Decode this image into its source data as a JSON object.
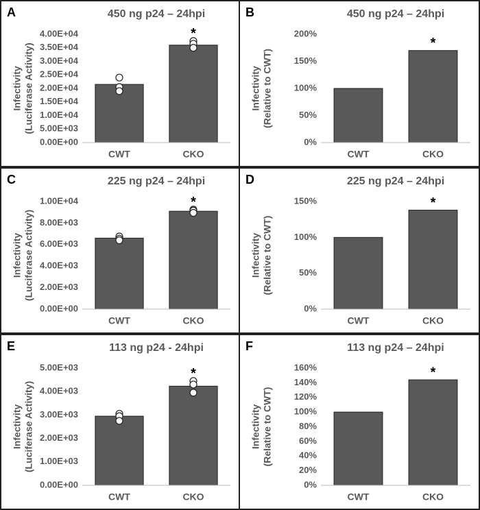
{
  "chart_data": [
    {
      "type": "bar",
      "panel": "A",
      "title": "450 ng p24 – 24hpi",
      "ylabel": [
        "Infectivity",
        "(Luciferase Activity)"
      ],
      "categories": [
        "CWT",
        "CKO"
      ],
      "values": [
        21500,
        36000
      ],
      "color": "#595959",
      "points": [
        [
          24000,
          20500,
          19000
        ],
        [
          37500,
          36500,
          35000
        ]
      ],
      "value_annotations": [
        null,
        "*"
      ],
      "ylim": [
        0,
        40000
      ],
      "yticks": [
        {
          "value": 0,
          "label": "0.00E+00"
        },
        {
          "value": 5000,
          "label": "5.00E+03"
        },
        {
          "value": 10000,
          "label": "1.00E+04"
        },
        {
          "value": 15000,
          "label": "1.50E+04"
        },
        {
          "value": 20000,
          "label": "2.00E+04"
        },
        {
          "value": 25000,
          "label": "2.50E+04"
        },
        {
          "value": 30000,
          "label": "3.00E+04"
        },
        {
          "value": 35000,
          "label": "3.50E+04"
        },
        {
          "value": 40000,
          "label": "4.00E+04"
        }
      ]
    },
    {
      "type": "bar",
      "panel": "B",
      "title": "450 ng p24 – 24hpi",
      "ylabel": [
        "Infectivity",
        "(Relative to CWT)"
      ],
      "categories": [
        "CWT",
        "CKO"
      ],
      "values": [
        100,
        170
      ],
      "color": "#595959",
      "value_annotations": [
        null,
        "*"
      ],
      "ylim": [
        0,
        200
      ],
      "yticks": [
        {
          "value": 0,
          "label": "0%"
        },
        {
          "value": 50,
          "label": "50%"
        },
        {
          "value": 100,
          "label": "100%"
        },
        {
          "value": 150,
          "label": "150%"
        },
        {
          "value": 200,
          "label": "200%"
        }
      ]
    },
    {
      "type": "bar",
      "panel": "C",
      "title": "225 ng p24 – 24hpi",
      "ylabel": [
        "Infectivity",
        "(Luciferase Activity)"
      ],
      "categories": [
        "CWT",
        "CKO"
      ],
      "values": [
        6600,
        9100
      ],
      "color": "#595959",
      "points": [
        [
          6750,
          6550,
          6400
        ],
        [
          9250,
          9150,
          8950
        ]
      ],
      "value_annotations": [
        null,
        "*"
      ],
      "ylim": [
        0,
        10000
      ],
      "yticks": [
        {
          "value": 0,
          "label": "0.00E+00"
        },
        {
          "value": 2000,
          "label": "2.00E+03"
        },
        {
          "value": 4000,
          "label": "4.00E+03"
        },
        {
          "value": 6000,
          "label": "6.00E+03"
        },
        {
          "value": 8000,
          "label": "8.00E+03"
        },
        {
          "value": 10000,
          "label": "1.00E+04"
        }
      ]
    },
    {
      "type": "bar",
      "panel": "D",
      "title": "225 ng p24 – 24hpi",
      "ylabel": [
        "Infectivity",
        "(Relative to CWT)"
      ],
      "categories": [
        "CWT",
        "CKO"
      ],
      "values": [
        100,
        138
      ],
      "color": "#595959",
      "value_annotations": [
        null,
        "*"
      ],
      "ylim": [
        0,
        150
      ],
      "yticks": [
        {
          "value": 0,
          "label": "0%"
        },
        {
          "value": 50,
          "label": "50%"
        },
        {
          "value": 100,
          "label": "100%"
        },
        {
          "value": 150,
          "label": "150%"
        }
      ]
    },
    {
      "type": "bar",
      "panel": "E",
      "title": "113 ng p24 - 24hpi",
      "ylabel": [
        "Infectivity",
        "(Luciferase Activity)"
      ],
      "categories": [
        "CWT",
        "CKO"
      ],
      "values": [
        2950,
        4230
      ],
      "color": "#595959",
      "points": [
        [
          3050,
          2950,
          2750
        ],
        [
          4450,
          4300,
          3950
        ]
      ],
      "value_annotations": [
        null,
        "*"
      ],
      "ylim": [
        0,
        5000
      ],
      "yticks": [
        {
          "value": 0,
          "label": "0.00E+00"
        },
        {
          "value": 1000,
          "label": "1.00E+03"
        },
        {
          "value": 2000,
          "label": "2.00E+03"
        },
        {
          "value": 3000,
          "label": "3.00E+03"
        },
        {
          "value": 4000,
          "label": "4.00E+03"
        },
        {
          "value": 5000,
          "label": "5.00E+03"
        }
      ]
    },
    {
      "type": "bar",
      "panel": "F",
      "title": "113 ng p24 – 24hpi",
      "ylabel": [
        "Infectivity",
        "(Relative to CWT)"
      ],
      "categories": [
        "CWT",
        "CKO"
      ],
      "values": [
        100,
        144
      ],
      "color": "#595959",
      "value_annotations": [
        null,
        "*"
      ],
      "ylim": [
        0,
        160
      ],
      "yticks": [
        {
          "value": 0,
          "label": "0%"
        },
        {
          "value": 20,
          "label": "20%"
        },
        {
          "value": 40,
          "label": "40%"
        },
        {
          "value": 60,
          "label": "60%"
        },
        {
          "value": 80,
          "label": "80%"
        },
        {
          "value": 100,
          "label": "100%"
        },
        {
          "value": 120,
          "label": "120%"
        },
        {
          "value": 140,
          "label": "140%"
        },
        {
          "value": 160,
          "label": "160%"
        }
      ]
    }
  ]
}
